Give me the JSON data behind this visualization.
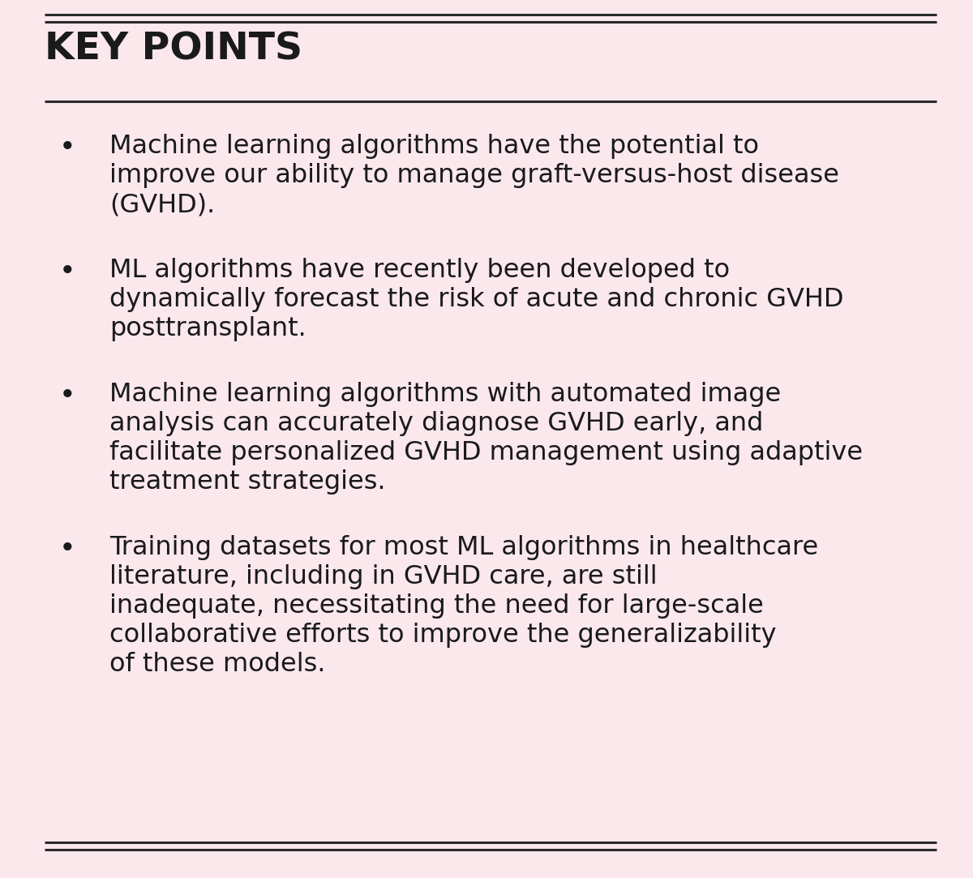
{
  "title": "KEY POINTS",
  "background_color": "#fae8ed",
  "text_color": "#1a1a1a",
  "title_color": "#1a1a1a",
  "border_color": "#2a2a2a",
  "bullet_points": [
    "Machine learning algorithms have the potential to improve our ability to manage graft-versus-host disease (GVHD).",
    "ML algorithms have recently been developed to dynamically forecast the risk of acute and chronic GVHD posttransplant.",
    "Machine learning algorithms with automated image analysis can accurately diagnose GVHD early, and facilitate personalized GVHD management using adaptive treatment strategies.",
    "Training datasets for most ML algorithms in healthcare literature, including in GVHD care, are still inadequate, necessitating the need for large-scale collaborative efforts to improve the generalizability of these models."
  ],
  "title_fontsize": 34,
  "body_fontsize": 23,
  "bullet_char": "•",
  "line_width": 2.2,
  "fig_width": 12.0,
  "fig_height": 10.83,
  "dpi": 100
}
